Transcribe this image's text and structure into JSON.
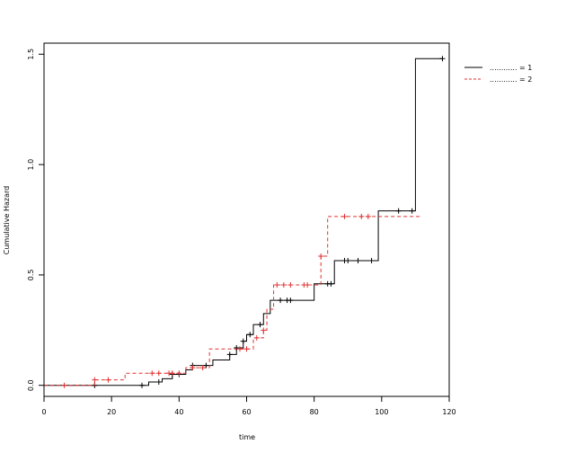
{
  "chart_data": {
    "type": "line",
    "step": true,
    "xlabel": "time",
    "ylabel": "Cumulative Hazard",
    "xlim": [
      0,
      120
    ],
    "ylim": [
      -0.05,
      1.55
    ],
    "x_ticks": [
      0,
      20,
      40,
      60,
      80,
      100,
      120
    ],
    "y_ticks": [
      0.0,
      0.5,
      1.0,
      1.5
    ],
    "x_tick_labels": [
      "0",
      "20",
      "40",
      "60",
      "80",
      "100",
      "120"
    ],
    "y_tick_labels": [
      "0.0",
      "0.5",
      "1.0",
      "1.5"
    ],
    "legend_position": "top-right",
    "series": [
      {
        "name": "............ = 1",
        "color": "#000000",
        "line_style": "solid",
        "steps": [
          [
            0,
            0.0
          ],
          [
            29,
            0.0
          ],
          [
            31,
            0.015
          ],
          [
            35,
            0.03
          ],
          [
            38,
            0.05
          ],
          [
            42,
            0.07
          ],
          [
            44,
            0.09
          ],
          [
            50,
            0.115
          ],
          [
            55,
            0.14
          ],
          [
            57,
            0.17
          ],
          [
            59,
            0.2
          ],
          [
            60,
            0.23
          ],
          [
            62,
            0.275
          ],
          [
            65,
            0.325
          ],
          [
            67,
            0.385
          ],
          [
            80,
            0.46
          ],
          [
            86,
            0.565
          ],
          [
            99,
            0.79
          ],
          [
            110,
            1.48
          ],
          [
            118,
            1.48
          ]
        ],
        "censor_times": [
          15,
          29,
          34,
          38,
          40,
          44,
          48,
          55,
          57,
          59,
          61,
          64,
          70,
          72,
          73,
          84,
          85,
          89,
          90,
          93,
          97,
          105,
          109,
          118
        ]
      },
      {
        "name": "............ = 2",
        "color": "#e03030",
        "line_style": "dashed",
        "steps": [
          [
            0,
            0.0
          ],
          [
            15,
            0.0
          ],
          [
            15,
            0.025
          ],
          [
            24,
            0.055
          ],
          [
            42,
            0.08
          ],
          [
            49,
            0.165
          ],
          [
            62,
            0.215
          ],
          [
            65,
            0.25
          ],
          [
            66,
            0.345
          ],
          [
            68,
            0.455
          ],
          [
            82,
            0.585
          ],
          [
            84,
            0.765
          ],
          [
            112,
            0.765
          ]
        ],
        "censor_times": [
          6,
          15,
          19,
          32,
          34,
          37,
          38,
          40,
          44,
          47,
          58,
          60,
          63,
          65,
          69,
          71,
          73,
          77,
          78,
          82,
          89,
          94,
          96
        ]
      }
    ]
  }
}
